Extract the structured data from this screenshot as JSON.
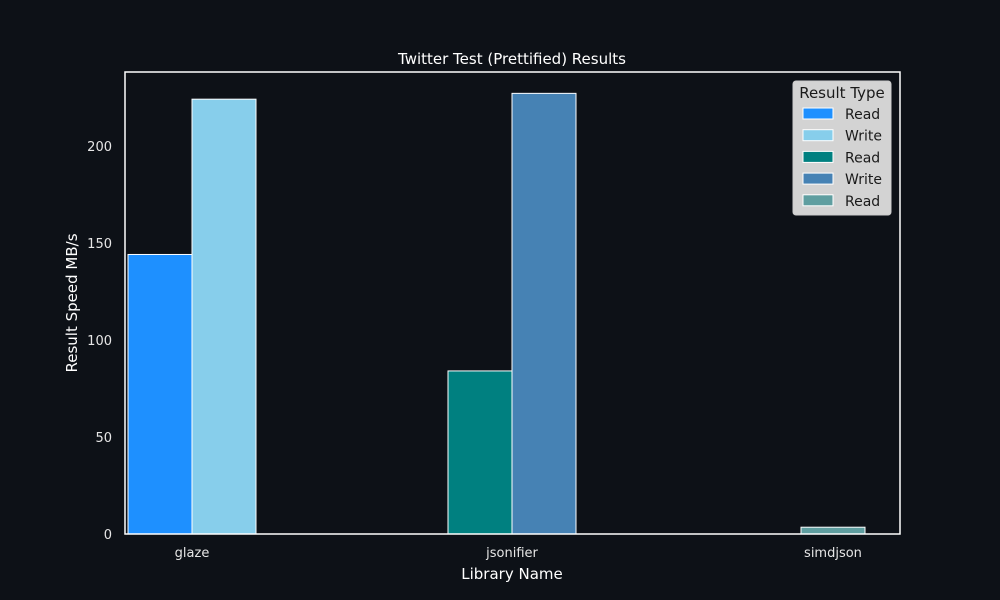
{
  "chart_data": {
    "type": "bar",
    "title": "Twitter Test (Prettified) Results",
    "xlabel": "Library Name",
    "ylabel": "Result Speed MB/s",
    "categories": [
      "glaze",
      "jsonifier",
      "simdjson"
    ],
    "ylim": [
      0,
      238
    ],
    "yticks": [
      0,
      50,
      100,
      150,
      200
    ],
    "grid": false,
    "legend": {
      "title": "Result Type",
      "placement": "top-right"
    },
    "series": [
      {
        "name": "Read",
        "category": "glaze",
        "value": 144,
        "color": "#1e90ff"
      },
      {
        "name": "Write",
        "category": "glaze",
        "value": 224,
        "color": "#87ceeb"
      },
      {
        "name": "Read",
        "category": "jsonifier",
        "value": 84,
        "color": "#008080"
      },
      {
        "name": "Write",
        "category": "jsonifier",
        "value": 227,
        "color": "#4682b4"
      },
      {
        "name": "Read",
        "category": "simdjson",
        "value": 3.5,
        "color": "#5f9ea0"
      }
    ],
    "colors": {
      "background": "#0d1117",
      "axes": "#ffffff",
      "bar_edge": "#ffffff",
      "legend_bg": "#d3d3d3"
    }
  }
}
